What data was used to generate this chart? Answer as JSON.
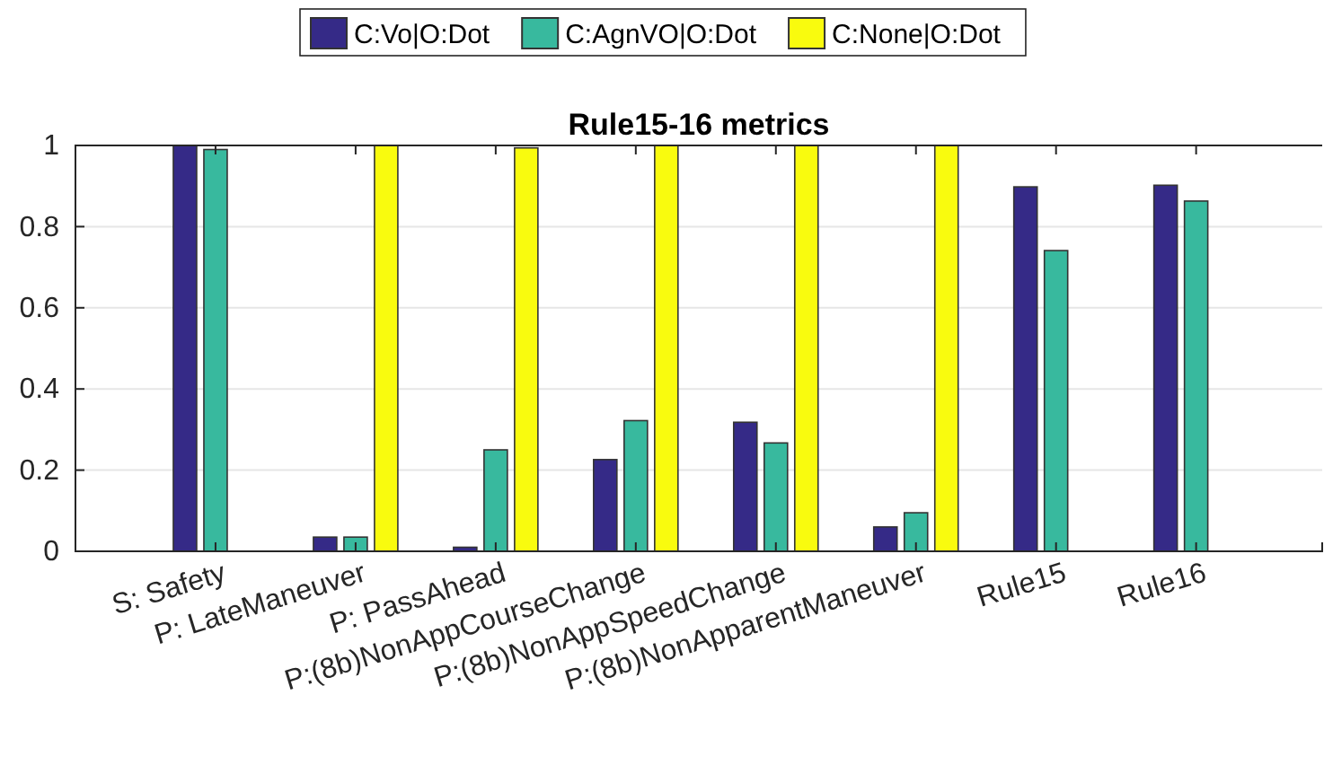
{
  "chart_data": {
    "type": "bar",
    "title": "Rule15-16 metrics",
    "categories": [
      "S: Safety",
      "P: LateManeuver",
      "P: PassAhead",
      "P:(8b)NonAppCourseChange",
      "P:(8b)NonAppSpeedChange",
      "P:(8b)NonApparentManeuver",
      "Rule15",
      "Rule16"
    ],
    "series": [
      {
        "name": "C:Vo|O:Dot",
        "color": "#352a87",
        "values": [
          1.0,
          0.035,
          0.01,
          0.226,
          0.318,
          0.06,
          0.898,
          0.902
        ]
      },
      {
        "name": "C:AgnVO|O:Dot",
        "color": "#38b99e",
        "values": [
          0.99,
          0.035,
          0.25,
          0.322,
          0.267,
          0.095,
          0.741,
          0.863
        ]
      },
      {
        "name": "C:None|O:Dot",
        "color": "#f9fb0e",
        "values": [
          0,
          1,
          0.994,
          1,
          1,
          1,
          0,
          0
        ]
      }
    ],
    "ylim": [
      0,
      1
    ],
    "yticks": [
      0,
      0.2,
      0.4,
      0.6,
      0.8,
      1
    ],
    "grid": "y",
    "legend": "top"
  }
}
